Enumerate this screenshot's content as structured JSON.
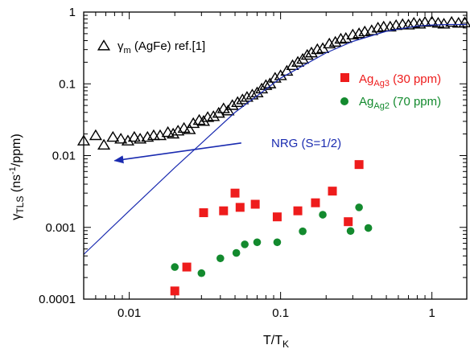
{
  "chart_data": {
    "type": "scatter",
    "xscale": "log",
    "yscale": "log",
    "xlim": [
      0.005,
      1.7
    ],
    "ylim": [
      0.0001,
      1
    ],
    "x_ticks": [
      {
        "value": 0.01,
        "label": "0.01"
      },
      {
        "value": 0.1,
        "label": "0.1"
      },
      {
        "value": 1,
        "label": "1"
      }
    ],
    "y_ticks": [
      {
        "value": 0.0001,
        "label": "0.0001"
      },
      {
        "value": 0.001,
        "label": "0.001"
      },
      {
        "value": 0.01,
        "label": "0.01"
      },
      {
        "value": 0.1,
        "label": "0.1"
      },
      {
        "value": 1,
        "label": "1"
      }
    ],
    "xlabel": {
      "main": "T/T",
      "sub": "K"
    },
    "ylabel": {
      "main": "γ",
      "sub": "TLS",
      "unit_pre": " (ns",
      "unit_sup": "-1",
      "unit_post": "/ppm)"
    },
    "grid": false,
    "series": [
      {
        "name": "γm (AgFe) ref.[1]",
        "label_parts": {
          "main": "γ",
          "sub": "m",
          "rest": " (AgFe) ref.[1]"
        },
        "marker": "open-triangle",
        "color": "#000000",
        "x": [
          0.005,
          0.006,
          0.0068,
          0.0078,
          0.0088,
          0.0098,
          0.0108,
          0.0118,
          0.0132,
          0.0145,
          0.016,
          0.018,
          0.0195,
          0.021,
          0.023,
          0.025,
          0.0265,
          0.029,
          0.031,
          0.033,
          0.036,
          0.039,
          0.042,
          0.045,
          0.048,
          0.052,
          0.056,
          0.06,
          0.065,
          0.07,
          0.075,
          0.08,
          0.085,
          0.092,
          0.1,
          0.11,
          0.12,
          0.13,
          0.14,
          0.15,
          0.16,
          0.175,
          0.19,
          0.21,
          0.23,
          0.25,
          0.27,
          0.3,
          0.33,
          0.36,
          0.4,
          0.44,
          0.48,
          0.53,
          0.58,
          0.64,
          0.7,
          0.76,
          0.83,
          0.9,
          1.0,
          1.1,
          1.2,
          1.35,
          1.5,
          1.65
        ],
        "y": [
          0.016,
          0.019,
          0.014,
          0.018,
          0.017,
          0.016,
          0.018,
          0.017,
          0.018,
          0.019,
          0.019,
          0.021,
          0.02,
          0.022,
          0.024,
          0.023,
          0.028,
          0.031,
          0.03,
          0.034,
          0.035,
          0.039,
          0.045,
          0.042,
          0.05,
          0.055,
          0.06,
          0.065,
          0.07,
          0.075,
          0.085,
          0.095,
          0.1,
          0.12,
          0.13,
          0.15,
          0.18,
          0.2,
          0.22,
          0.25,
          0.27,
          0.3,
          0.31,
          0.36,
          0.38,
          0.42,
          0.43,
          0.48,
          0.5,
          0.53,
          0.55,
          0.6,
          0.62,
          0.62,
          0.65,
          0.67,
          0.66,
          0.7,
          0.68,
          0.72,
          0.73,
          0.7,
          0.68,
          0.72,
          0.7,
          0.71
        ]
      },
      {
        "name": "AgAg3 (30 ppm)",
        "label_parts": {
          "main": "Ag",
          "sub": "Ag3",
          "rest": " (30 ppm)"
        },
        "marker": "filled-square",
        "color": "#ee1c1c",
        "x": [
          0.02,
          0.024,
          0.031,
          0.042,
          0.05,
          0.054,
          0.068,
          0.095,
          0.13,
          0.17,
          0.22,
          0.28,
          0.33
        ],
        "y": [
          0.00013,
          0.00028,
          0.0016,
          0.0017,
          0.003,
          0.0019,
          0.0021,
          0.0014,
          0.0017,
          0.0022,
          0.0032,
          0.0012,
          0.0075
        ]
      },
      {
        "name": "AgAg2 (70 ppm)",
        "label_parts": {
          "main": "Ag",
          "sub": "Ag2",
          "rest": " (70 ppm)"
        },
        "marker": "filled-circle",
        "color": "#138a2e",
        "x": [
          0.02,
          0.03,
          0.04,
          0.051,
          0.058,
          0.07,
          0.095,
          0.14,
          0.19,
          0.29,
          0.33,
          0.38
        ],
        "y": [
          0.00028,
          0.00023,
          0.00037,
          0.00044,
          0.00058,
          0.00062,
          0.00062,
          0.00088,
          0.0015,
          0.00089,
          0.0019,
          0.00098
        ]
      },
      {
        "name": "NRG (S=1/2)",
        "marker": "line",
        "color": "#1a2bb0",
        "x": [
          0.005,
          0.01,
          0.02,
          0.05,
          0.1,
          0.2,
          0.3,
          0.5,
          0.8,
          1.0,
          1.3,
          1.7
        ],
        "y": [
          0.00042,
          0.0017,
          0.0068,
          0.04,
          0.12,
          0.27,
          0.39,
          0.54,
          0.64,
          0.66,
          0.67,
          0.67
        ]
      }
    ],
    "annotations": [
      {
        "text": "NRG (S=1/2)",
        "color": "#1a2bb0",
        "arrow_to": {
          "x": 0.008,
          "y": 0.0085
        },
        "arrow_from": {
          "x": 0.055,
          "y": 0.015
        }
      }
    ]
  }
}
